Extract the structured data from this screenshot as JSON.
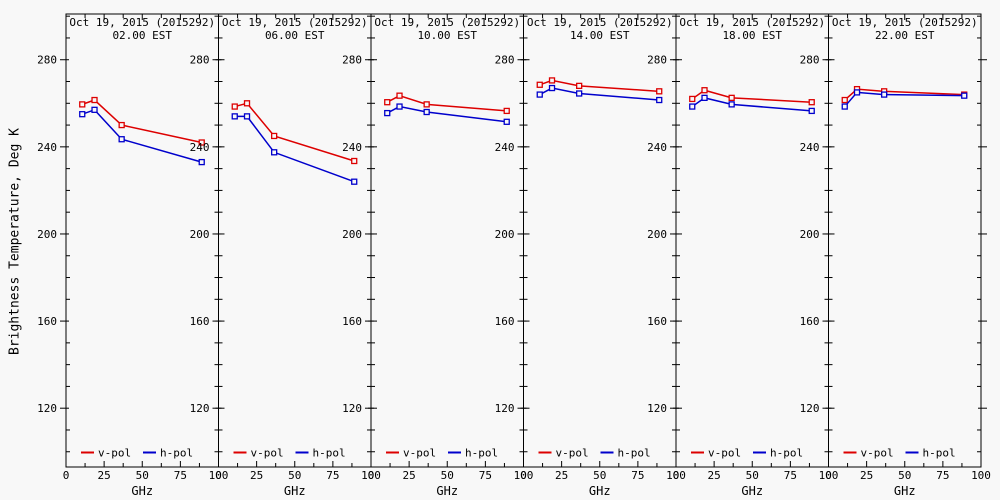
{
  "figure": {
    "background": "#f8f8f8",
    "axis_color": "#000000",
    "text_color": "#000000"
  },
  "chart_data": {
    "type": "line",
    "x": [
      10.65,
      18.7,
      36.5,
      89.0
    ],
    "xlabel": "GHz",
    "ylabel": "Brightness Temperature, Deg K",
    "xlim": [
      0,
      100
    ],
    "ylim": [
      93,
      301
    ],
    "xticks": [
      0,
      25,
      50,
      75,
      100
    ],
    "xminors": [
      12.5,
      37.5,
      62.5,
      87.5
    ],
    "yticks": [
      280,
      240,
      200,
      160,
      120
    ],
    "yminor_step": 10,
    "grid": false,
    "marker": "open-square",
    "legend_position": "bottom-inside-each-panel",
    "legend": [
      {
        "label": "v-pol",
        "color": "#dd0000"
      },
      {
        "label": "h-pol",
        "color": "#0000cc"
      }
    ],
    "panels": [
      {
        "title": "Oct 19, 2015 (2015292)",
        "subtitle": "02.00 EST",
        "series": [
          {
            "name": "v-pol",
            "color": "#dd0000",
            "values": [
              259.5,
              261.5,
              250.0,
              242.0
            ]
          },
          {
            "name": "h-pol",
            "color": "#0000cc",
            "values": [
              255.0,
              257.0,
              243.5,
              233.0
            ]
          }
        ]
      },
      {
        "title": "Oct 19, 2015 (2015292)",
        "subtitle": "06.00 EST",
        "series": [
          {
            "name": "v-pol",
            "color": "#dd0000",
            "values": [
              258.5,
              260.0,
              245.0,
              233.5
            ]
          },
          {
            "name": "h-pol",
            "color": "#0000cc",
            "values": [
              254.0,
              254.0,
              237.5,
              224.0
            ]
          }
        ]
      },
      {
        "title": "Oct 19, 2015 (2015292)",
        "subtitle": "10.00 EST",
        "series": [
          {
            "name": "v-pol",
            "color": "#dd0000",
            "values": [
              260.5,
              263.5,
              259.5,
              256.5
            ]
          },
          {
            "name": "h-pol",
            "color": "#0000cc",
            "values": [
              255.5,
              258.5,
              256.0,
              251.5
            ]
          }
        ]
      },
      {
        "title": "Oct 19, 2015 (2015292)",
        "subtitle": "14.00 EST",
        "series": [
          {
            "name": "v-pol",
            "color": "#dd0000",
            "values": [
              268.5,
              270.5,
              268.0,
              265.5
            ]
          },
          {
            "name": "h-pol",
            "color": "#0000cc",
            "values": [
              264.0,
              267.0,
              264.5,
              261.5
            ]
          }
        ]
      },
      {
        "title": "Oct 19, 2015 (2015292)",
        "subtitle": "18.00 EST",
        "series": [
          {
            "name": "v-pol",
            "color": "#dd0000",
            "values": [
              262.0,
              266.0,
              262.5,
              260.5
            ]
          },
          {
            "name": "h-pol",
            "color": "#0000cc",
            "values": [
              258.5,
              262.5,
              259.5,
              256.5
            ]
          }
        ]
      },
      {
        "title": "Oct 19, 2015 (2015292)",
        "subtitle": "22.00 EST",
        "series": [
          {
            "name": "v-pol",
            "color": "#dd0000",
            "values": [
              261.5,
              266.5,
              265.5,
              264.0
            ]
          },
          {
            "name": "h-pol",
            "color": "#0000cc",
            "values": [
              258.5,
              265.0,
              264.0,
              263.5
            ]
          }
        ]
      }
    ]
  }
}
